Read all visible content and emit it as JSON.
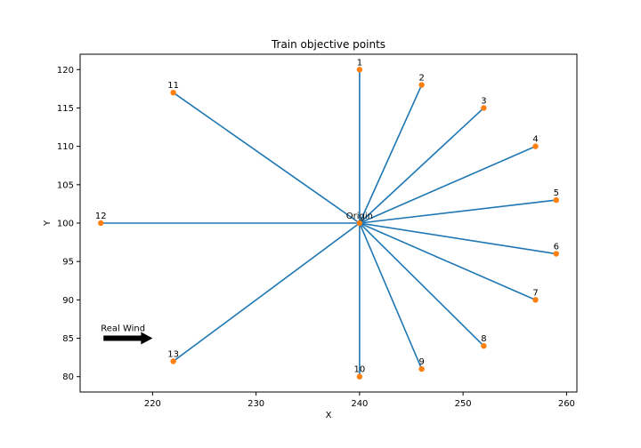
{
  "chart_data": {
    "type": "scatter",
    "title": "Train objective points",
    "xlabel": "X",
    "ylabel": "Y",
    "xlim": [
      213,
      261
    ],
    "ylim": [
      78,
      122
    ],
    "xticks": [
      220,
      230,
      240,
      250,
      260
    ],
    "yticks": [
      80,
      85,
      90,
      95,
      100,
      105,
      110,
      115,
      120
    ],
    "grid": false,
    "origin": {
      "label": "Origin",
      "x": 240,
      "y": 100
    },
    "points": [
      {
        "label": "1",
        "x": 240,
        "y": 120
      },
      {
        "label": "2",
        "x": 246,
        "y": 118
      },
      {
        "label": "3",
        "x": 252,
        "y": 115
      },
      {
        "label": "4",
        "x": 257,
        "y": 110
      },
      {
        "label": "5",
        "x": 259,
        "y": 103
      },
      {
        "label": "6",
        "x": 259,
        "y": 96
      },
      {
        "label": "7",
        "x": 257,
        "y": 90
      },
      {
        "label": "8",
        "x": 252,
        "y": 84
      },
      {
        "label": "9",
        "x": 246,
        "y": 81
      },
      {
        "label": "10",
        "x": 240,
        "y": 80
      },
      {
        "label": "11",
        "x": 222,
        "y": 117
      },
      {
        "label": "12",
        "x": 215,
        "y": 100
      },
      {
        "label": "13",
        "x": 222,
        "y": 82
      }
    ],
    "annotation": {
      "text": "Real Wind",
      "from": [
        215,
        85
      ],
      "to": [
        220,
        85
      ]
    },
    "colors": {
      "line": "#1f77b4",
      "marker": "#ff7f0e",
      "arrow": "#000000"
    }
  }
}
